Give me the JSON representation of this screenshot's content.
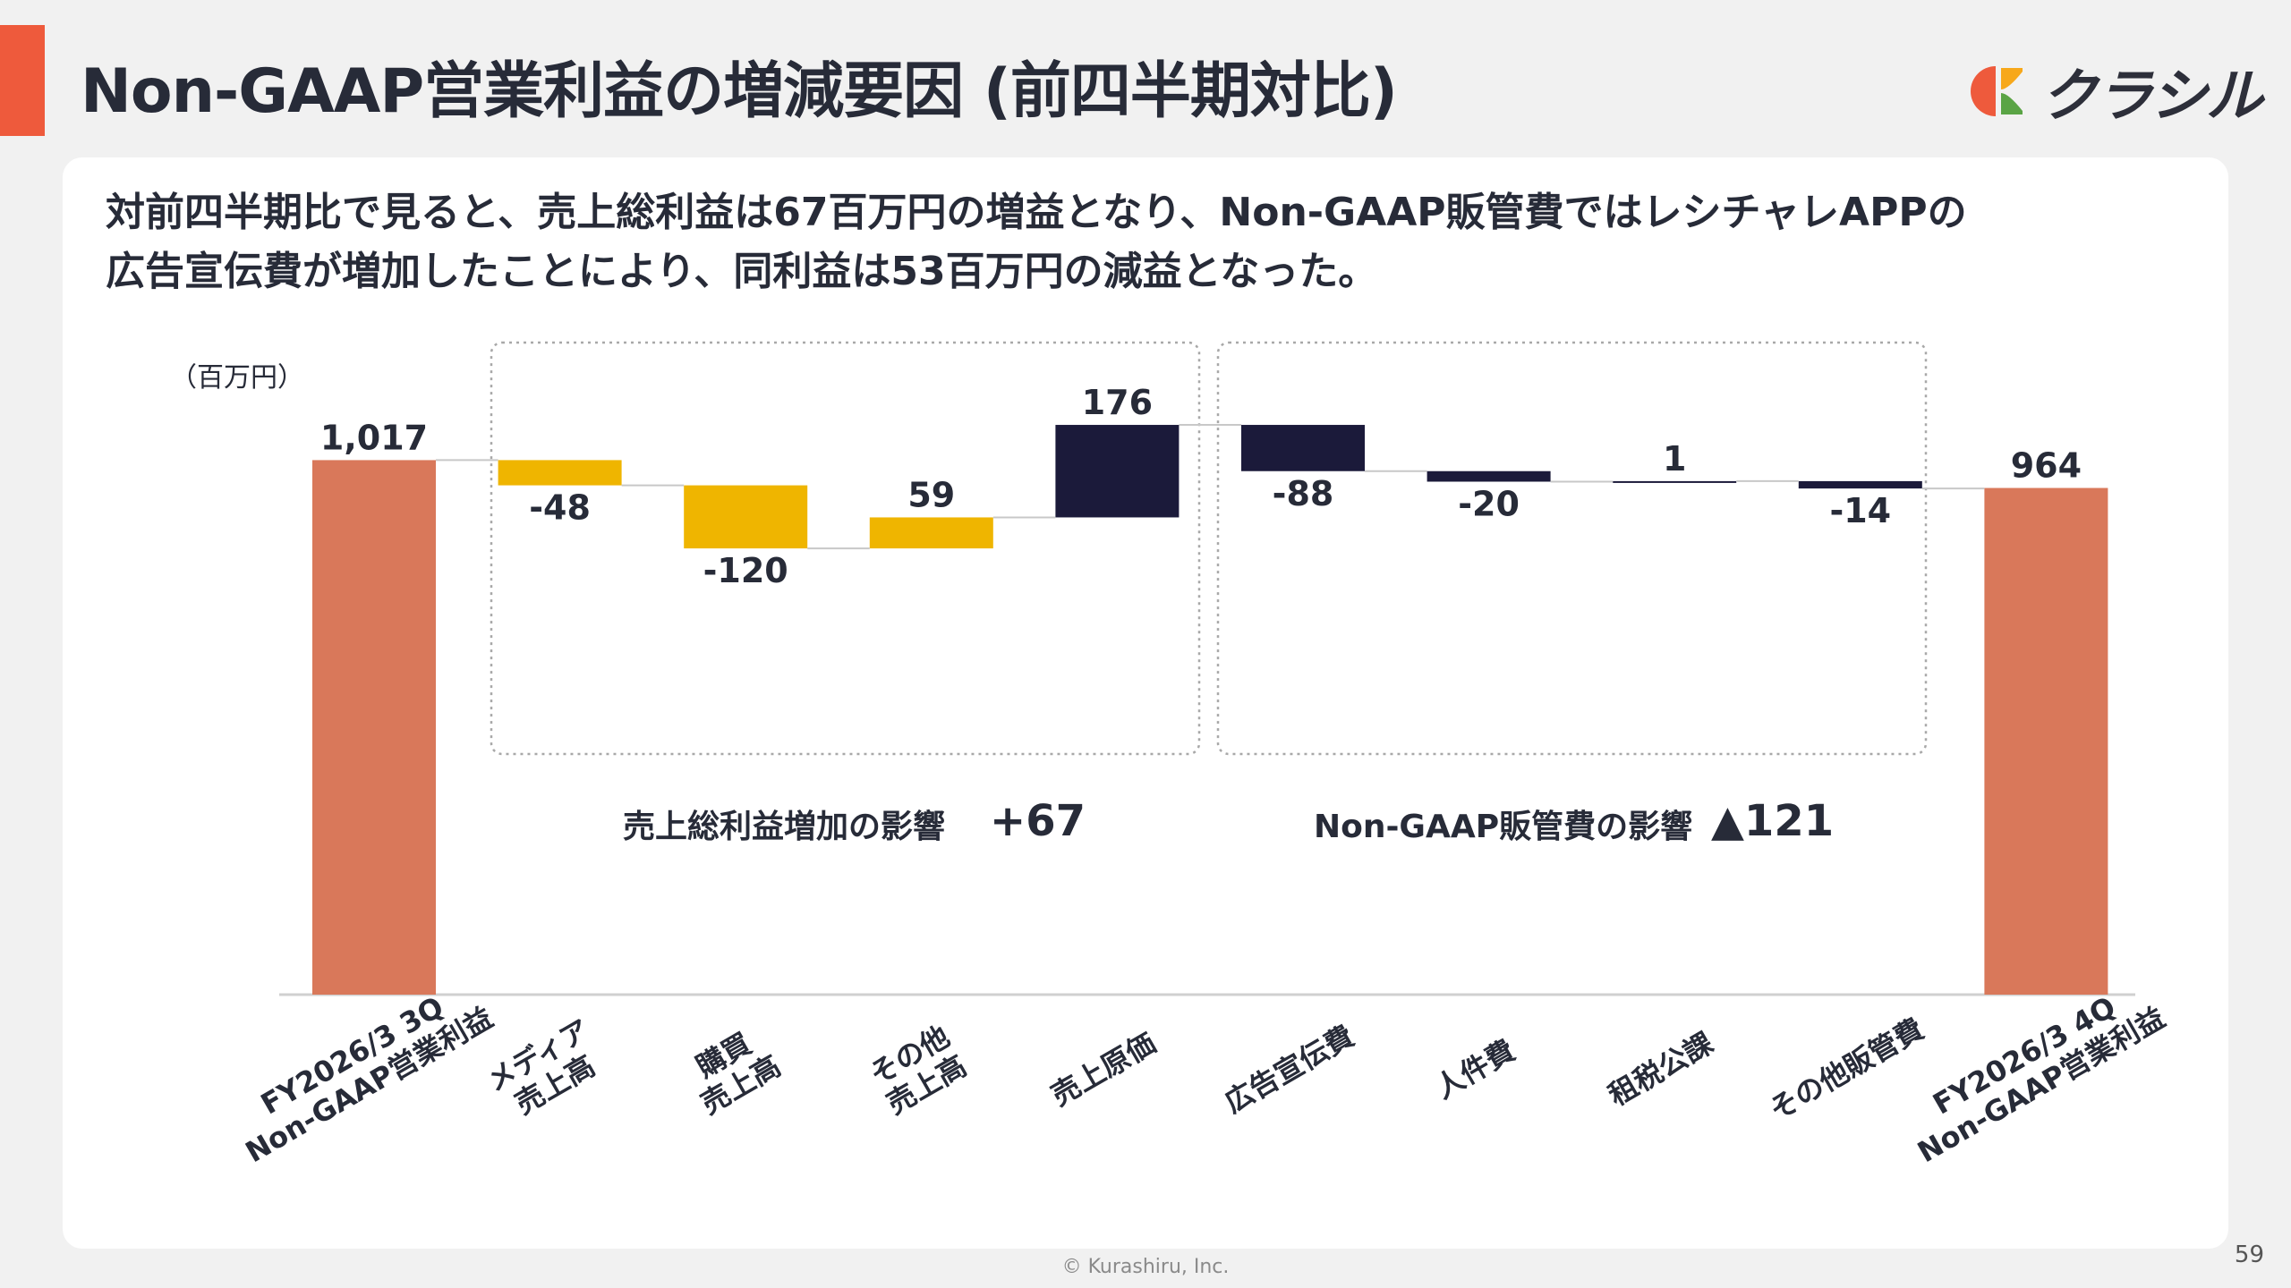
{
  "header": {
    "title": "Non-GAAP営業利益の増減要因 (前四半期対比)",
    "logo_text": "クラシル"
  },
  "summary": {
    "line1": "対前四半期比で見ると、売上総利益は67百万円の増益となり、Non-GAAP販管費ではレシチャレAPPの",
    "line2": "広告宣伝費が増加したことにより、同利益は53百万円の減益となった。"
  },
  "chart_data": {
    "type": "waterfall",
    "unit_label": "（百万円）",
    "categories": [
      {
        "lines": [
          "FY2026/3 3Q",
          "Non-GAAP営業利益"
        ],
        "type": "total",
        "value": 1017,
        "label": "1,017"
      },
      {
        "lines": [
          "メディア",
          "売上高"
        ],
        "type": "gross",
        "value": -48,
        "label": "-48"
      },
      {
        "lines": [
          "購買",
          "売上高"
        ],
        "type": "gross",
        "value": -120,
        "label": "-120"
      },
      {
        "lines": [
          "その他",
          "売上高"
        ],
        "type": "gross",
        "value": 59,
        "label": "59"
      },
      {
        "lines": [
          "売上原価"
        ],
        "type": "cost",
        "value": 176,
        "label": "176"
      },
      {
        "lines": [
          "広告宣伝費"
        ],
        "type": "cost",
        "value": -88,
        "label": "-88"
      },
      {
        "lines": [
          "人件費"
        ],
        "type": "cost",
        "value": -20,
        "label": "-20"
      },
      {
        "lines": [
          "租税公課"
        ],
        "type": "cost",
        "value": 1,
        "label": "1"
      },
      {
        "lines": [
          "その他販管費"
        ],
        "type": "cost",
        "value": -14,
        "label": "-14"
      },
      {
        "lines": [
          "FY2026/3 4Q",
          "Non-GAAP営業利益"
        ],
        "type": "total",
        "value": 964,
        "label": "964"
      }
    ],
    "groups": [
      {
        "label": "売上総利益増加の影響",
        "value": "+67"
      },
      {
        "label": "Non-GAAP販管費の影響",
        "value": "▲121"
      }
    ],
    "colors": {
      "total": "#d9785a",
      "gross": "#efb500",
      "cost": "#1b1a3a",
      "box": "#a8a8a8",
      "connector": "#c8c8c8",
      "axis": "#d0d0d0"
    }
  },
  "footer": {
    "copyright": "© Kurashiru, Inc.",
    "page_number": "59"
  }
}
